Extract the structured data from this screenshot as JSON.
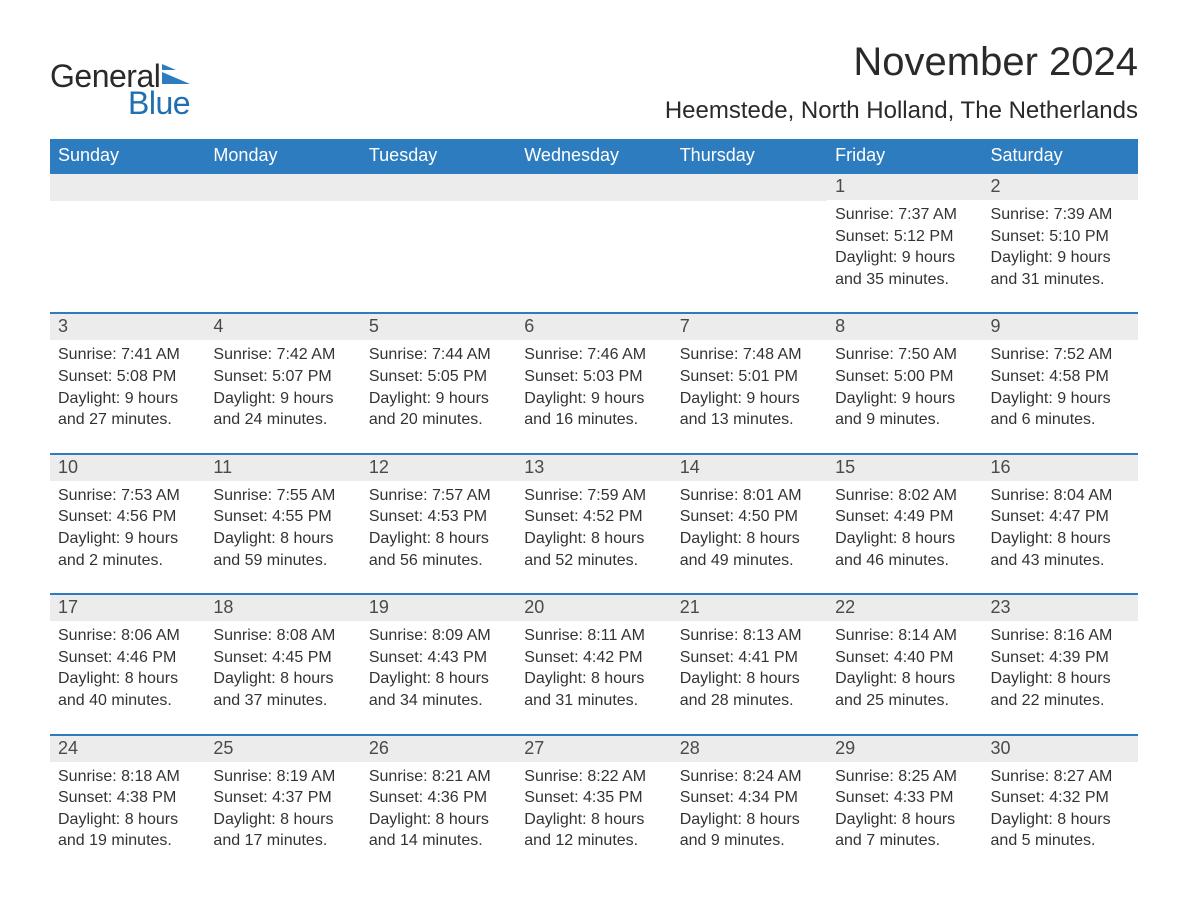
{
  "logo": {
    "text_general": "General",
    "text_blue": "Blue",
    "icon_color": "#2d7cc0"
  },
  "header": {
    "month_title": "November 2024",
    "location": "Heemstede, North Holland, The Netherlands"
  },
  "colors": {
    "header_bg": "#2d7cc0",
    "header_text": "#ffffff",
    "day_number_bg": "#ececec",
    "day_number_text": "#4a4a4a",
    "body_text": "#333333",
    "week_border": "#2d7cc0",
    "page_bg": "#ffffff",
    "logo_blue": "#1f6fb2",
    "logo_dark": "#2a2a2a"
  },
  "typography": {
    "month_title_fontsize": 40,
    "location_fontsize": 24,
    "weekday_fontsize": 18,
    "daynum_fontsize": 18,
    "body_fontsize": 16,
    "logo_fontsize": 32,
    "font_family": "Arial"
  },
  "weekdays": [
    "Sunday",
    "Monday",
    "Tuesday",
    "Wednesday",
    "Thursday",
    "Friday",
    "Saturday"
  ],
  "weeks": [
    [
      {
        "day": "",
        "sunrise": "",
        "sunset": "",
        "daylight1": "",
        "daylight2": ""
      },
      {
        "day": "",
        "sunrise": "",
        "sunset": "",
        "daylight1": "",
        "daylight2": ""
      },
      {
        "day": "",
        "sunrise": "",
        "sunset": "",
        "daylight1": "",
        "daylight2": ""
      },
      {
        "day": "",
        "sunrise": "",
        "sunset": "",
        "daylight1": "",
        "daylight2": ""
      },
      {
        "day": "",
        "sunrise": "",
        "sunset": "",
        "daylight1": "",
        "daylight2": ""
      },
      {
        "day": "1",
        "sunrise": "Sunrise: 7:37 AM",
        "sunset": "Sunset: 5:12 PM",
        "daylight1": "Daylight: 9 hours",
        "daylight2": "and 35 minutes."
      },
      {
        "day": "2",
        "sunrise": "Sunrise: 7:39 AM",
        "sunset": "Sunset: 5:10 PM",
        "daylight1": "Daylight: 9 hours",
        "daylight2": "and 31 minutes."
      }
    ],
    [
      {
        "day": "3",
        "sunrise": "Sunrise: 7:41 AM",
        "sunset": "Sunset: 5:08 PM",
        "daylight1": "Daylight: 9 hours",
        "daylight2": "and 27 minutes."
      },
      {
        "day": "4",
        "sunrise": "Sunrise: 7:42 AM",
        "sunset": "Sunset: 5:07 PM",
        "daylight1": "Daylight: 9 hours",
        "daylight2": "and 24 minutes."
      },
      {
        "day": "5",
        "sunrise": "Sunrise: 7:44 AM",
        "sunset": "Sunset: 5:05 PM",
        "daylight1": "Daylight: 9 hours",
        "daylight2": "and 20 minutes."
      },
      {
        "day": "6",
        "sunrise": "Sunrise: 7:46 AM",
        "sunset": "Sunset: 5:03 PM",
        "daylight1": "Daylight: 9 hours",
        "daylight2": "and 16 minutes."
      },
      {
        "day": "7",
        "sunrise": "Sunrise: 7:48 AM",
        "sunset": "Sunset: 5:01 PM",
        "daylight1": "Daylight: 9 hours",
        "daylight2": "and 13 minutes."
      },
      {
        "day": "8",
        "sunrise": "Sunrise: 7:50 AM",
        "sunset": "Sunset: 5:00 PM",
        "daylight1": "Daylight: 9 hours",
        "daylight2": "and 9 minutes."
      },
      {
        "day": "9",
        "sunrise": "Sunrise: 7:52 AM",
        "sunset": "Sunset: 4:58 PM",
        "daylight1": "Daylight: 9 hours",
        "daylight2": "and 6 minutes."
      }
    ],
    [
      {
        "day": "10",
        "sunrise": "Sunrise: 7:53 AM",
        "sunset": "Sunset: 4:56 PM",
        "daylight1": "Daylight: 9 hours",
        "daylight2": "and 2 minutes."
      },
      {
        "day": "11",
        "sunrise": "Sunrise: 7:55 AM",
        "sunset": "Sunset: 4:55 PM",
        "daylight1": "Daylight: 8 hours",
        "daylight2": "and 59 minutes."
      },
      {
        "day": "12",
        "sunrise": "Sunrise: 7:57 AM",
        "sunset": "Sunset: 4:53 PM",
        "daylight1": "Daylight: 8 hours",
        "daylight2": "and 56 minutes."
      },
      {
        "day": "13",
        "sunrise": "Sunrise: 7:59 AM",
        "sunset": "Sunset: 4:52 PM",
        "daylight1": "Daylight: 8 hours",
        "daylight2": "and 52 minutes."
      },
      {
        "day": "14",
        "sunrise": "Sunrise: 8:01 AM",
        "sunset": "Sunset: 4:50 PM",
        "daylight1": "Daylight: 8 hours",
        "daylight2": "and 49 minutes."
      },
      {
        "day": "15",
        "sunrise": "Sunrise: 8:02 AM",
        "sunset": "Sunset: 4:49 PM",
        "daylight1": "Daylight: 8 hours",
        "daylight2": "and 46 minutes."
      },
      {
        "day": "16",
        "sunrise": "Sunrise: 8:04 AM",
        "sunset": "Sunset: 4:47 PM",
        "daylight1": "Daylight: 8 hours",
        "daylight2": "and 43 minutes."
      }
    ],
    [
      {
        "day": "17",
        "sunrise": "Sunrise: 8:06 AM",
        "sunset": "Sunset: 4:46 PM",
        "daylight1": "Daylight: 8 hours",
        "daylight2": "and 40 minutes."
      },
      {
        "day": "18",
        "sunrise": "Sunrise: 8:08 AM",
        "sunset": "Sunset: 4:45 PM",
        "daylight1": "Daylight: 8 hours",
        "daylight2": "and 37 minutes."
      },
      {
        "day": "19",
        "sunrise": "Sunrise: 8:09 AM",
        "sunset": "Sunset: 4:43 PM",
        "daylight1": "Daylight: 8 hours",
        "daylight2": "and 34 minutes."
      },
      {
        "day": "20",
        "sunrise": "Sunrise: 8:11 AM",
        "sunset": "Sunset: 4:42 PM",
        "daylight1": "Daylight: 8 hours",
        "daylight2": "and 31 minutes."
      },
      {
        "day": "21",
        "sunrise": "Sunrise: 8:13 AM",
        "sunset": "Sunset: 4:41 PM",
        "daylight1": "Daylight: 8 hours",
        "daylight2": "and 28 minutes."
      },
      {
        "day": "22",
        "sunrise": "Sunrise: 8:14 AM",
        "sunset": "Sunset: 4:40 PM",
        "daylight1": "Daylight: 8 hours",
        "daylight2": "and 25 minutes."
      },
      {
        "day": "23",
        "sunrise": "Sunrise: 8:16 AM",
        "sunset": "Sunset: 4:39 PM",
        "daylight1": "Daylight: 8 hours",
        "daylight2": "and 22 minutes."
      }
    ],
    [
      {
        "day": "24",
        "sunrise": "Sunrise: 8:18 AM",
        "sunset": "Sunset: 4:38 PM",
        "daylight1": "Daylight: 8 hours",
        "daylight2": "and 19 minutes."
      },
      {
        "day": "25",
        "sunrise": "Sunrise: 8:19 AM",
        "sunset": "Sunset: 4:37 PM",
        "daylight1": "Daylight: 8 hours",
        "daylight2": "and 17 minutes."
      },
      {
        "day": "26",
        "sunrise": "Sunrise: 8:21 AM",
        "sunset": "Sunset: 4:36 PM",
        "daylight1": "Daylight: 8 hours",
        "daylight2": "and 14 minutes."
      },
      {
        "day": "27",
        "sunrise": "Sunrise: 8:22 AM",
        "sunset": "Sunset: 4:35 PM",
        "daylight1": "Daylight: 8 hours",
        "daylight2": "and 12 minutes."
      },
      {
        "day": "28",
        "sunrise": "Sunrise: 8:24 AM",
        "sunset": "Sunset: 4:34 PM",
        "daylight1": "Daylight: 8 hours",
        "daylight2": "and 9 minutes."
      },
      {
        "day": "29",
        "sunrise": "Sunrise: 8:25 AM",
        "sunset": "Sunset: 4:33 PM",
        "daylight1": "Daylight: 8 hours",
        "daylight2": "and 7 minutes."
      },
      {
        "day": "30",
        "sunrise": "Sunrise: 8:27 AM",
        "sunset": "Sunset: 4:32 PM",
        "daylight1": "Daylight: 8 hours",
        "daylight2": "and 5 minutes."
      }
    ]
  ]
}
